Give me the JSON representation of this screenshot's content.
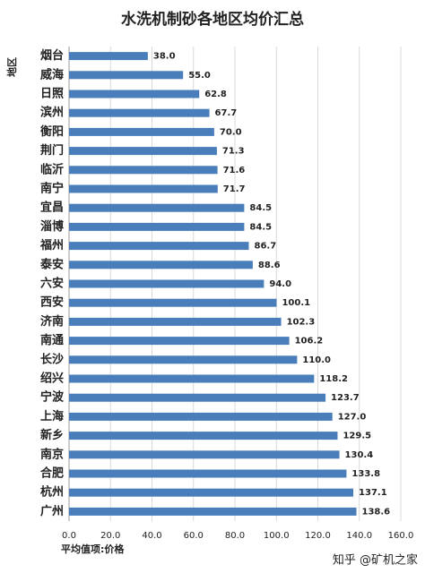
{
  "chart_data": {
    "type": "hbar",
    "title": "水洗机制砂各地区均价汇总",
    "y_label": "地区",
    "x_label": "平均值项:价格",
    "watermark": "知乎 @矿机之家",
    "categories": [
      "烟台",
      "威海",
      "日照",
      "滨州",
      "衡阳",
      "荆门",
      "临沂",
      "南宁",
      "宜昌",
      "淄博",
      "福州",
      "泰安",
      "六安",
      "西安",
      "济南",
      "南通",
      "长沙",
      "绍兴",
      "宁波",
      "上海",
      "新乡",
      "南京",
      "合肥",
      "杭州",
      "广州"
    ],
    "values": [
      38.0,
      55.0,
      62.8,
      67.7,
      70.0,
      71.3,
      71.6,
      71.7,
      84.5,
      84.5,
      86.7,
      88.6,
      94.0,
      100.1,
      102.3,
      106.2,
      110.0,
      118.2,
      123.7,
      127.0,
      129.5,
      130.4,
      133.8,
      137.1,
      138.6
    ],
    "value_labels": [
      "38.0",
      "55.0",
      "62.8",
      "67.7",
      "70.0",
      "71.3",
      "71.6",
      "71.7",
      "84.5",
      "84.5",
      "86.7",
      "88.6",
      "94.0",
      "100.1",
      "102.3",
      "106.2",
      "110.0",
      "118.2",
      "123.7",
      "127.0",
      "129.5",
      "130.4",
      "133.8",
      "137.1",
      "138.6"
    ],
    "color": "#4a7ebb",
    "xlim": [
      0,
      160
    ],
    "xticks": [
      {
        "value": 0,
        "label": "0.0"
      },
      {
        "value": 20,
        "label": "20.0"
      },
      {
        "value": 40,
        "label": "40.0"
      },
      {
        "value": 60,
        "label": "60.0"
      },
      {
        "value": 80,
        "label": "80.0"
      },
      {
        "value": 100,
        "label": "100.0"
      },
      {
        "value": 120,
        "label": "120.0"
      },
      {
        "value": 140,
        "label": "140.0"
      },
      {
        "value": 160,
        "label": "160.0"
      }
    ],
    "grid": true
  }
}
